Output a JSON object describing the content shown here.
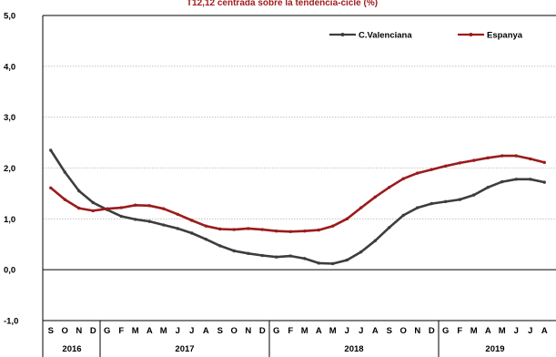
{
  "chart_data": {
    "type": "line",
    "title": "T12,12 centrada sobre la tendència-cicle (%)",
    "ylim": [
      -1.0,
      5.0
    ],
    "y_ticks": [
      "5,0",
      "4,0",
      "3,0",
      "2,0",
      "1,0",
      "0,0",
      "-1,0"
    ],
    "grid": true,
    "legend_position": "top-right",
    "x": [
      "S",
      "O",
      "N",
      "D",
      "G",
      "F",
      "M",
      "A",
      "M",
      "J",
      "J",
      "A",
      "S",
      "O",
      "N",
      "D",
      "G",
      "F",
      "M",
      "A",
      "M",
      "J",
      "J",
      "A",
      "S",
      "O",
      "N",
      "D",
      "G",
      "F",
      "M",
      "A",
      "M",
      "J",
      "J",
      "A"
    ],
    "year_groups": [
      {
        "label": "2016",
        "count": 4
      },
      {
        "label": "2017",
        "count": 12
      },
      {
        "label": "2018",
        "count": 12
      },
      {
        "label": "2019",
        "count": 8
      }
    ],
    "series": [
      {
        "name": "C.Valenciana",
        "color": "#3d3d3d",
        "values": [
          2.35,
          1.92,
          1.55,
          1.32,
          1.18,
          1.05,
          0.99,
          0.95,
          0.88,
          0.81,
          0.72,
          0.6,
          0.47,
          0.37,
          0.32,
          0.28,
          0.25,
          0.27,
          0.22,
          0.13,
          0.12,
          0.19,
          0.35,
          0.57,
          0.83,
          1.07,
          1.22,
          1.3,
          1.34,
          1.38,
          1.47,
          1.62,
          1.73,
          1.78,
          1.78,
          1.72
        ]
      },
      {
        "name": "Espanya",
        "color": "#9b1b1b",
        "values": [
          1.61,
          1.38,
          1.21,
          1.16,
          1.2,
          1.22,
          1.27,
          1.26,
          1.2,
          1.09,
          0.97,
          0.86,
          0.8,
          0.79,
          0.81,
          0.79,
          0.76,
          0.75,
          0.76,
          0.78,
          0.86,
          1.0,
          1.22,
          1.43,
          1.62,
          1.79,
          1.9,
          1.97,
          2.04,
          2.1,
          2.15,
          2.2,
          2.24,
          2.24,
          2.18,
          2.11
        ]
      }
    ]
  }
}
